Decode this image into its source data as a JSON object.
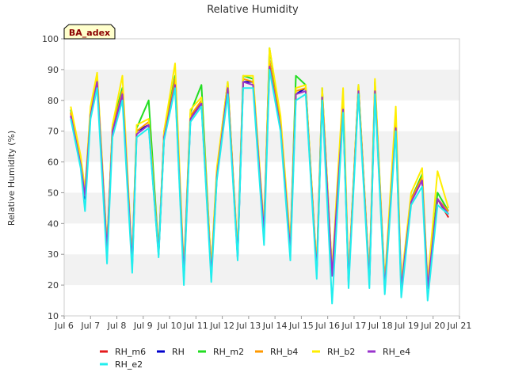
{
  "chart_data": {
    "type": "line",
    "title": "Relative Humidity",
    "ylabel": "Relative Humidity (%)",
    "xlabel": "",
    "site_label": "BA_adex",
    "ylim": [
      10,
      100
    ],
    "yticks": [
      10,
      20,
      30,
      40,
      50,
      60,
      70,
      80,
      90,
      100
    ],
    "xlim": [
      "Jul 6",
      "Jul 21"
    ],
    "xticks": [
      "Jul 6",
      "Jul 7",
      "Jul 8",
      "Jul 9",
      "Jul 10",
      "Jul 11",
      "Jul 12",
      "Jul 13",
      "Jul 14",
      "Jul 15",
      "Jul 16",
      "Jul 17",
      "Jul 18",
      "Jul 19",
      "Jul 20",
      "Jul 21"
    ],
    "grid": "horizontal bands",
    "legend_placement": "bottom",
    "x": [
      "Jul 6 06:00",
      "Jul 6 15:00",
      "Jul 6 19:00",
      "Jul 7 00:00",
      "Jul 7 06:00",
      "Jul 7 15:00",
      "Jul 7 20:00",
      "Jul 8 05:00",
      "Jul 8 14:00",
      "Jul 8 18:00",
      "Jul 9 05:00",
      "Jul 9 14:00",
      "Jul 9 19:00",
      "Jul 10 05:00",
      "Jul 10 13:00",
      "Jul 10 19:00",
      "Jul 11 05:00",
      "Jul 11 14:00",
      "Jul 11 19:00",
      "Jul 12 05:00",
      "Jul 12 14:00",
      "Jul 12 19:00",
      "Jul 13 04:00",
      "Jul 13 14:00",
      "Jul 13 19:00",
      "Jul 14 05:00",
      "Jul 14 14:00",
      "Jul 14 19:00",
      "Jul 15 04:00",
      "Jul 15 14:00",
      "Jul 15 19:00",
      "Jul 16 04:00",
      "Jul 16 14:00",
      "Jul 16 19:00",
      "Jul 17 04:00",
      "Jul 17 14:00",
      "Jul 17 19:00",
      "Jul 18 04:00",
      "Jul 18 14:00",
      "Jul 18 19:00",
      "Jul 19 04:00",
      "Jul 19 14:00",
      "Jul 19 19:00",
      "Jul 20 04:00",
      "Jul 20 14:00"
    ],
    "series": [
      {
        "name": "RH_m6",
        "color": "#e41a1c",
        "values": [
          76,
          60,
          50,
          76,
          86,
          32,
          70,
          83,
          27,
          70,
          72,
          30,
          70,
          86,
          23,
          75,
          79,
          24,
          56,
          84,
          30,
          86,
          86,
          38,
          92,
          72,
          32,
          82,
          84,
          25,
          82,
          24,
          78,
          22,
          84,
          22,
          84,
          20,
          72,
          20,
          48,
          55,
          20,
          48,
          42
        ]
      },
      {
        "name": "RH",
        "color": "#0000cc",
        "values": [
          75,
          59,
          48,
          75,
          86,
          31,
          70,
          82,
          26,
          70,
          72,
          30,
          68,
          86,
          22,
          74,
          79,
          23,
          55,
          84,
          29,
          86,
          86,
          37,
          92,
          72,
          31,
          82,
          84,
          24,
          82,
          23,
          78,
          21,
          84,
          21,
          84,
          19,
          72,
          19,
          48,
          55,
          19,
          48,
          43
        ]
      },
      {
        "name": "RH_m2",
        "color": "#22dd22",
        "values": [
          77,
          61,
          50,
          77,
          88,
          32,
          72,
          84,
          28,
          71,
          80,
          31,
          69,
          88,
          24,
          76,
          85,
          25,
          57,
          86,
          30,
          88,
          87,
          38,
          97,
          73,
          33,
          88,
          85,
          25,
          84,
          24,
          80,
          22,
          85,
          22,
          86,
          20,
          73,
          20,
          48,
          56,
          20,
          50,
          44
        ]
      },
      {
        "name": "RH_b4",
        "color": "#ff9900",
        "values": [
          76,
          60,
          49,
          76,
          87,
          32,
          71,
          83,
          27,
          70,
          73,
          30,
          68,
          87,
          23,
          75,
          80,
          24,
          56,
          85,
          30,
          87,
          86,
          38,
          93,
          72,
          32,
          83,
          84,
          25,
          82,
          24,
          78,
          22,
          84,
          22,
          84,
          20,
          72,
          20,
          48,
          55,
          20,
          48,
          44
        ]
      },
      {
        "name": "RH_b2",
        "color": "#ffee00",
        "values": [
          78,
          62,
          51,
          78,
          89,
          33,
          72,
          88,
          28,
          72,
          74,
          31,
          70,
          92,
          25,
          77,
          81,
          26,
          58,
          86,
          31,
          88,
          88,
          39,
          97,
          75,
          34,
          84,
          85,
          26,
          84,
          25,
          84,
          23,
          85,
          23,
          87,
          21,
          78,
          21,
          50,
          58,
          21,
          57,
          45
        ]
      },
      {
        "name": "RH_e4",
        "color": "#9933cc",
        "values": [
          75,
          59,
          49,
          75,
          86,
          31,
          70,
          82,
          27,
          69,
          72,
          30,
          68,
          85,
          23,
          74,
          79,
          23,
          55,
          84,
          29,
          86,
          85,
          37,
          91,
          71,
          31,
          82,
          83,
          24,
          81,
          23,
          77,
          21,
          83,
          21,
          83,
          19,
          71,
          19,
          47,
          54,
          19,
          48,
          43
        ]
      },
      {
        "name": "RH_e2",
        "color": "#22eeee",
        "values": [
          74,
          58,
          44,
          74,
          84,
          27,
          68,
          80,
          24,
          68,
          71,
          29,
          67,
          84,
          20,
          73,
          78,
          21,
          54,
          82,
          28,
          84,
          84,
          33,
          90,
          70,
          28,
          80,
          82,
          22,
          80,
          14,
          76,
          19,
          82,
          19,
          82,
          17,
          70,
          16,
          46,
          52,
          15,
          46,
          43
        ]
      }
    ]
  }
}
